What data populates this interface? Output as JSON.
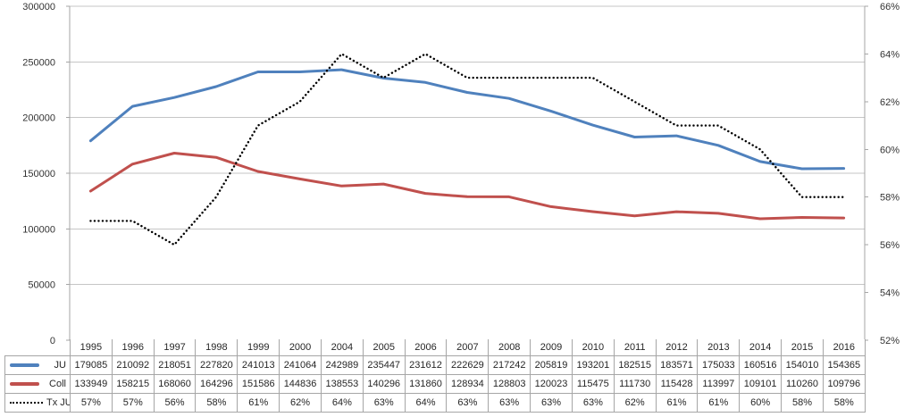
{
  "chart_data": {
    "type": "line",
    "title": "",
    "xlabel": "",
    "ylabel": "",
    "grid": true,
    "legend_position": "data-table-left",
    "categories": [
      "1995",
      "1996",
      "1997",
      "1998",
      "1999",
      "2000",
      "2004",
      "2005",
      "2006",
      "2007",
      "2008",
      "2009",
      "2010",
      "2011",
      "2012",
      "2013",
      "2014",
      "2015",
      "2016"
    ],
    "series": [
      {
        "name": "JU",
        "axis": "left",
        "style": "solid",
        "color": "#4F81BD",
        "values": [
          179085,
          210092,
          218051,
          227820,
          241013,
          241064,
          242989,
          235447,
          231612,
          222629,
          217242,
          205819,
          193201,
          182515,
          183571,
          175033,
          160516,
          154010,
          154365
        ]
      },
      {
        "name": "Coll",
        "axis": "left",
        "style": "solid",
        "color": "#C0504D",
        "values": [
          133949,
          158215,
          168060,
          164296,
          151586,
          144836,
          138553,
          140296,
          131860,
          128934,
          128803,
          120023,
          115475,
          111730,
          115428,
          113997,
          109101,
          110260,
          109796
        ]
      },
      {
        "name": "Tx JU",
        "axis": "right",
        "style": "dotted",
        "color": "#000000",
        "values": [
          "57%",
          "57%",
          "56%",
          "58%",
          "61%",
          "62%",
          "64%",
          "63%",
          "64%",
          "63%",
          "63%",
          "63%",
          "63%",
          "62%",
          "61%",
          "61%",
          "60%",
          "58%",
          "58%"
        ]
      }
    ],
    "y_left": {
      "min": 0,
      "max": 300000,
      "step": 50000,
      "tick_labels": [
        "300000",
        "250000",
        "200000",
        "150000",
        "100000",
        "50000",
        "0"
      ]
    },
    "y_right": {
      "min": 52,
      "max": 66,
      "step": 2,
      "tick_labels": [
        "66%",
        "64%",
        "62%",
        "60%",
        "58%",
        "56%",
        "54%",
        "52%"
      ]
    }
  },
  "colors": {
    "series_ju": "#4F81BD",
    "series_coll": "#C0504D",
    "series_txju": "#000000",
    "gridline": "#c6c6c6",
    "axis_line": "#a6a6a6",
    "table_border": "#a6a6a6",
    "axis_text": "#333333",
    "table_text": "#262626",
    "background": "#ffffff"
  }
}
